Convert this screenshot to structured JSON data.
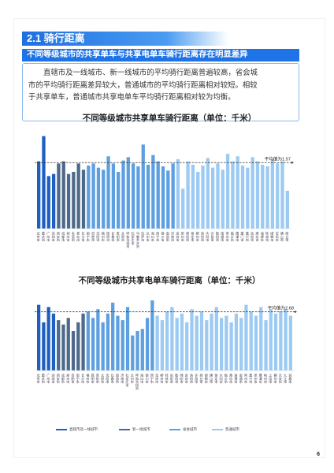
{
  "section": {
    "title": "2.1 骑行距离"
  },
  "subheading": "不同等级城市的共享单车与共享电单车骑行距离存在明显差异",
  "paragraph": {
    "lines": [
      "直辖市及一线城市、新一线城市的平均骑行距离普遍较高，省会城",
      "市的平均骑行距离差异较大，普通城市的平均骑行距离相对较短。相较",
      "于共享单车，普通城市共享电单车平均骑行距离相对较为均衡。"
    ]
  },
  "legend": {
    "items": [
      {
        "label": "直辖市及一线城市",
        "color": "#1f5fbf"
      },
      {
        "label": "新一线城市",
        "color": "#4d6a8a"
      },
      {
        "label": "省会城市",
        "color": "#5e9fe0"
      },
      {
        "label": "普通城市",
        "color": "#9ccaf2"
      }
    ]
  },
  "page_number": "6",
  "chart_data": [
    {
      "type": "bar",
      "title": "不同等级城市共享单车骑行距离（单位：千米）",
      "reference_line": {
        "value": 1.57,
        "label": "平均值为1.57"
      },
      "categories": [
        "北京市",
        "重庆市",
        "广州市",
        "深圳市",
        "西安市",
        "成都市",
        "郑州市",
        "东莞市",
        "青岛市",
        "长沙市",
        "南宁市",
        "合肥市",
        "沈阳市",
        "福州市",
        "昆明市",
        "长春市",
        "贵阳市",
        "太原市",
        "呼和浩特市",
        "石家庄市",
        "乌鲁木齐市",
        "拉萨市",
        "兰州市",
        "海口市",
        "西宁市",
        "银川市",
        "南昌市",
        "济南市",
        "宜宾市",
        "泉州市",
        "绵阳市",
        "保定市",
        "柳州市",
        "洛阳市",
        "大同市",
        "许昌市",
        "衡阳市",
        "南通市",
        "常州市",
        "临沂市",
        "鹰潭市",
        "厦门市",
        "嘉兴市",
        "岳阳市",
        "潍坊市",
        "淄博市",
        "桂林市",
        "邯郸市",
        "宝鸡市",
        "唐山市",
        "商丘市"
      ],
      "groups": [
        "直辖市及一线城市",
        "直辖市及一线城市",
        "直辖市及一线城市",
        "直辖市及一线城市",
        "新一线城市",
        "新一线城市",
        "新一线城市",
        "新一线城市",
        "新一线城市",
        "新一线城市",
        "省会城市",
        "省会城市",
        "省会城市",
        "省会城市",
        "省会城市",
        "省会城市",
        "省会城市",
        "省会城市",
        "省会城市",
        "省会城市",
        "省会城市",
        "省会城市",
        "省会城市",
        "省会城市",
        "省会城市",
        "省会城市",
        "省会城市",
        "省会城市",
        "普通城市",
        "普通城市",
        "普通城市",
        "普通城市",
        "普通城市",
        "普通城市",
        "普通城市",
        "普通城市",
        "普通城市",
        "普通城市",
        "普通城市",
        "普通城市",
        "普通城市",
        "普通城市",
        "普通城市",
        "普通城市",
        "普通城市",
        "普通城市",
        "普通城市",
        "普通城市",
        "普通城市",
        "普通城市",
        "普通城市"
      ],
      "values": [
        1.6,
        2.2,
        1.25,
        1.3,
        1.55,
        1.6,
        1.3,
        1.35,
        1.55,
        1.4,
        1.5,
        1.55,
        1.45,
        1.4,
        1.72,
        1.55,
        1.35,
        1.62,
        1.7,
        1.55,
        1.48,
        2.0,
        1.52,
        1.75,
        1.6,
        1.48,
        1.38,
        1.55,
        1.65,
        0.95,
        1.6,
        1.52,
        1.35,
        1.5,
        1.68,
        1.45,
        1.55,
        1.4,
        1.78,
        1.6,
        1.72,
        1.5,
        1.45,
        1.7,
        1.6,
        1.52,
        1.48,
        1.65,
        1.55,
        1.6,
        0.9
      ],
      "ylim": [
        0,
        2.4
      ]
    },
    {
      "type": "bar",
      "title": "不同等级城市共享电单车骑行距离（单位：千米）",
      "reference_line": {
        "value": 2.68,
        "label": "平均值为2.68"
      },
      "categories": [
        "北京市",
        "重庆市",
        "广州市",
        "深圳市",
        "西安市",
        "成都市",
        "郑州市",
        "合肥市",
        "南宁市",
        "长沙市",
        "福州市",
        "昆明市",
        "贵阳市",
        "太原市",
        "沈阳市",
        "长春市",
        "南昌市",
        "济南市",
        "石家庄市",
        "兰州市",
        "呼和浩特市",
        "海口市",
        "银川市",
        "西宁市",
        "宝鸡市",
        "柳州市",
        "桂林市",
        "岳阳市",
        "衡阳市",
        "绵阳市",
        "宜宾市",
        "洛阳市",
        "许昌市",
        "商丘市",
        "邯郸市",
        "唐山市",
        "保定市",
        "大同市",
        "临沂市",
        "潍坊市",
        "淄博市",
        "南通市",
        "常州市",
        "嘉兴市",
        "泉州市",
        "鹰潭市",
        "梅州市",
        "上饶市",
        "赣州市",
        "吉安市",
        "九江市",
        "宜春市"
      ],
      "groups": [
        "直辖市及一线城市",
        "直辖市及一线城市",
        "直辖市及一线城市",
        "直辖市及一线城市",
        "新一线城市",
        "新一线城市",
        "新一线城市",
        "新一线城市",
        "新一线城市",
        "新一线城市",
        "省会城市",
        "省会城市",
        "省会城市",
        "省会城市",
        "省会城市",
        "省会城市",
        "省会城市",
        "省会城市",
        "省会城市",
        "省会城市",
        "省会城市",
        "省会城市",
        "省会城市",
        "省会城市",
        "普通城市",
        "普通城市",
        "普通城市",
        "普通城市",
        "普通城市",
        "普通城市",
        "普通城市",
        "普通城市",
        "普通城市",
        "普通城市",
        "普通城市",
        "普通城市",
        "普通城市",
        "普通城市",
        "普通城市",
        "普通城市",
        "普通城市",
        "普通城市",
        "普通城市",
        "普通城市",
        "普通城市",
        "普通城市",
        "普通城市",
        "普通城市",
        "普通城市",
        "普通城市",
        "普通城市",
        "普通城市"
      ],
      "values": [
        3.0,
        2.2,
        2.9,
        2.6,
        2.3,
        2.1,
        2.4,
        1.8,
        2.2,
        2.6,
        2.7,
        2.4,
        2.8,
        2.2,
        2.6,
        3.1,
        2.5,
        2.3,
        2.9,
        1.6,
        1.8,
        1.9,
        2.4,
        3.2,
        2.5,
        2.3,
        2.7,
        2.9,
        2.4,
        2.6,
        2.2,
        2.8,
        2.5,
        2.7,
        2.3,
        2.6,
        2.9,
        2.4,
        2.5,
        2.2,
        2.6,
        2.4,
        3.0,
        2.7,
        2.5,
        2.9,
        2.3,
        2.8,
        2.6,
        2.7,
        2.8,
        2.5
      ],
      "ylim": [
        0,
        3.6
      ]
    }
  ]
}
